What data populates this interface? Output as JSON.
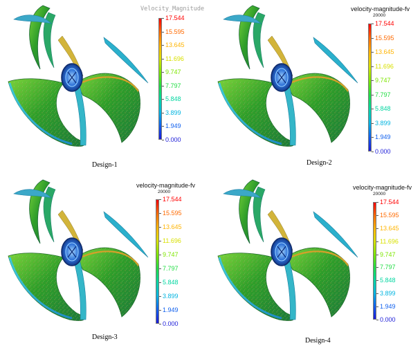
{
  "legend_colors": [
    "#ff0000",
    "#ff6a00",
    "#ffb400",
    "#d8e000",
    "#7ee600",
    "#22dd44",
    "#00d6a0",
    "#00b4e0",
    "#1060ee",
    "#1a1ad8"
  ],
  "panels": [
    {
      "caption": "Design-1",
      "legend_title": "Velocity_Magnitude",
      "legend_subtitle": "",
      "ticks": [
        "17.544",
        "15.595",
        "13.645",
        "11.696",
        "9.747",
        "7.797",
        "5.848",
        "3.899",
        "1.949",
        "0.000"
      ]
    },
    {
      "caption": "Design-2",
      "legend_title": "velocity-magnitude-fv",
      "legend_subtitle": "20000",
      "ticks": [
        "17.544",
        "15.595",
        "13.645",
        "11.696",
        "9.747",
        "7.797",
        "5.848",
        "3.899",
        "1.949",
        "0.000"
      ]
    },
    {
      "caption": "Design-3",
      "legend_title": "velocity-magnitude-fv",
      "legend_subtitle": "20000",
      "ticks": [
        "17.544",
        "15.595",
        "13.645",
        "11.696",
        "9.747",
        "7.797",
        "5.848",
        "3.899",
        "1.949",
        "0.000"
      ]
    },
    {
      "caption": "Design-4",
      "legend_title": "velocity-magnitude-fv",
      "legend_subtitle": "20000",
      "ticks": [
        "17.544",
        "15.595",
        "13.645",
        "11.696",
        "9.747",
        "7.797",
        "5.848",
        "3.899",
        "1.949",
        "0.000"
      ]
    }
  ]
}
